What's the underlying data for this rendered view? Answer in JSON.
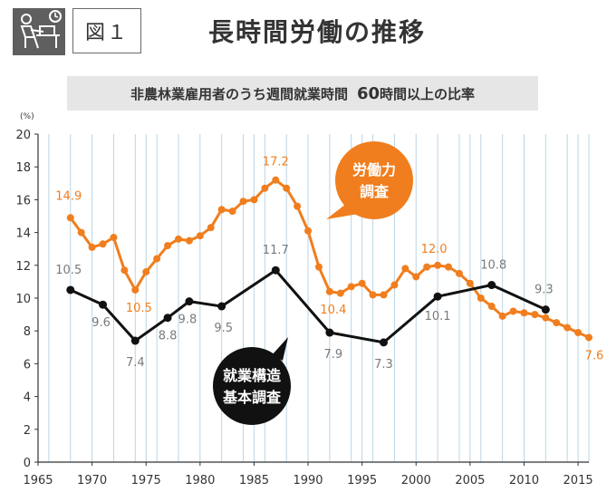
{
  "header": {
    "figure_label": "図１",
    "title": "長時間労働の推移"
  },
  "subtitle": {
    "part1": "非農林業雇用者のうち週間就業時間",
    "part2": "60",
    "part3": "時間以上の比率"
  },
  "colors": {
    "labor_force_series": "#f07e1e",
    "structure_series": "#111111",
    "label_gray": "#7a7a7a",
    "gridline": "#b9d5e6"
  },
  "chart_data": {
    "type": "line",
    "ylabel": "(%)",
    "xlim": [
      1965,
      2016
    ],
    "ylim": [
      0,
      20
    ],
    "x_ticks": [
      1965,
      1970,
      1975,
      1980,
      1985,
      1990,
      1995,
      2000,
      2005,
      2010,
      2015
    ],
    "y_ticks": [
      0,
      2,
      4,
      6,
      8,
      10,
      12,
      14,
      16,
      18,
      20
    ],
    "grid": "vertical",
    "series": [
      {
        "name": "労働力調査",
        "callout": [
          "労働力",
          "調査"
        ],
        "x": [
          1968,
          1969,
          1970,
          1971,
          1972,
          1973,
          1974,
          1975,
          1976,
          1977,
          1978,
          1979,
          1980,
          1981,
          1982,
          1983,
          1984,
          1985,
          1986,
          1987,
          1988,
          1989,
          1990,
          1991,
          1992,
          1993,
          1994,
          1995,
          1996,
          1997,
          1998,
          1999,
          2000,
          2001,
          2002,
          2003,
          2004,
          2005,
          2006,
          2007,
          2008,
          2009,
          2010,
          2011,
          2012,
          2013,
          2014,
          2015,
          2016
        ],
        "y": [
          14.9,
          14.0,
          13.1,
          13.3,
          13.7,
          11.7,
          10.5,
          11.6,
          12.4,
          13.2,
          13.6,
          13.5,
          13.8,
          14.3,
          15.4,
          15.3,
          15.9,
          16.0,
          16.7,
          17.2,
          16.7,
          15.6,
          14.1,
          11.9,
          10.4,
          10.3,
          10.7,
          10.9,
          10.2,
          10.2,
          10.8,
          11.8,
          11.3,
          11.9,
          12.0,
          11.9,
          11.5,
          10.9,
          10.0,
          9.5,
          8.9,
          9.2,
          9.1,
          9.0,
          8.8,
          8.5,
          8.2,
          7.9,
          7.6
        ],
        "data_labels": [
          {
            "x": 1968,
            "y": 14.9,
            "text": "14.9"
          },
          {
            "x": 1974,
            "y": 10.5,
            "text": "10.5"
          },
          {
            "x": 1987,
            "y": 17.2,
            "text": "17.2"
          },
          {
            "x": 1992,
            "y": 10.4,
            "text": "10.4"
          },
          {
            "x": 2002,
            "y": 12.0,
            "text": "12.0"
          },
          {
            "x": 2016,
            "y": 7.6,
            "text": "7.6"
          }
        ]
      },
      {
        "name": "就業構造基本調査",
        "callout": [
          "就業構造",
          "基本調査"
        ],
        "x": [
          1968,
          1971,
          1974,
          1977,
          1979,
          1982,
          1987,
          1992,
          1997,
          2002,
          2007,
          2012
        ],
        "y": [
          10.5,
          9.6,
          7.4,
          8.8,
          9.8,
          9.5,
          11.7,
          7.9,
          7.3,
          10.1,
          10.8,
          9.3
        ],
        "data_labels": [
          {
            "x": 1968,
            "y": 10.5,
            "text": "10.5"
          },
          {
            "x": 1971,
            "y": 9.6,
            "text": "9.6"
          },
          {
            "x": 1974,
            "y": 7.4,
            "text": "7.4"
          },
          {
            "x": 1977,
            "y": 8.8,
            "text": "8.8"
          },
          {
            "x": 1979,
            "y": 9.8,
            "text": "9.8"
          },
          {
            "x": 1982,
            "y": 9.5,
            "text": "9.5"
          },
          {
            "x": 1987,
            "y": 11.7,
            "text": "11.7"
          },
          {
            "x": 1992,
            "y": 7.9,
            "text": "7.9"
          },
          {
            "x": 1997,
            "y": 7.3,
            "text": "7.3"
          },
          {
            "x": 2002,
            "y": 10.1,
            "text": "10.1"
          },
          {
            "x": 2007,
            "y": 10.8,
            "text": "10.8"
          },
          {
            "x": 2012,
            "y": 9.3,
            "text": "9.3"
          }
        ]
      }
    ]
  }
}
